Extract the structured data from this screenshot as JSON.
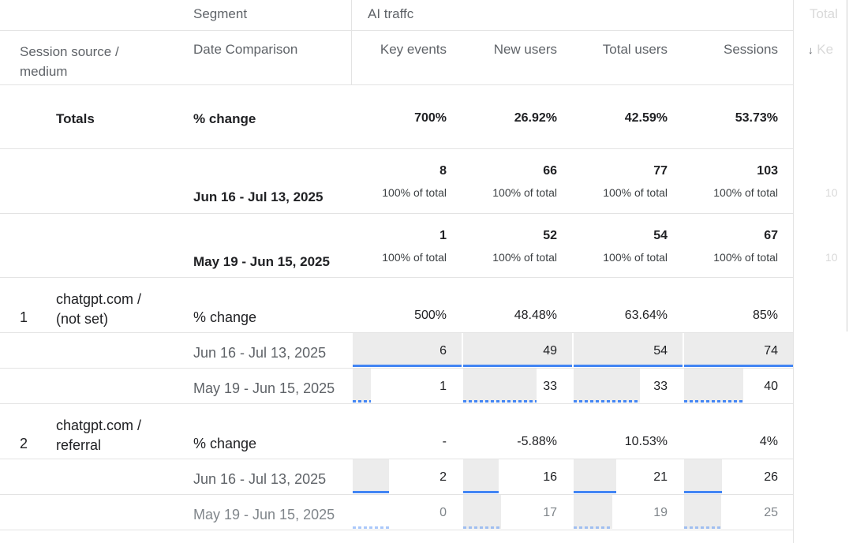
{
  "header": {
    "segment_label": "Segment",
    "segment_name": "AI traffc",
    "cut_segment": "Total"
  },
  "columns": {
    "source": "Session source / medium",
    "date": "Date Comparison",
    "key_events": "Key events",
    "new_users": "New users",
    "total_users": "Total users",
    "sessions": "Sessions",
    "cut_col": "Ke"
  },
  "totals": {
    "label": "Totals",
    "change_label": "% change",
    "change": [
      "700%",
      "26.92%",
      "42.59%",
      "53.73%"
    ],
    "current": {
      "date": "Jun 16 - Jul 13, 2025",
      "values": [
        "8",
        "66",
        "77",
        "103"
      ],
      "pct": "100% of total",
      "cut": "10"
    },
    "previous": {
      "date": "May 19 - Jun 15, 2025",
      "values": [
        "1",
        "52",
        "54",
        "67"
      ],
      "pct": "100% of total",
      "cut": "10"
    }
  },
  "rows": [
    {
      "index": "1",
      "source": "chatgpt.com / (not set)",
      "change_label": "% change",
      "change": [
        "500%",
        "48.48%",
        "63.64%",
        "85%"
      ],
      "current": {
        "date": "Jun 16 - Jul 13, 2025",
        "values": [
          "6",
          "49",
          "54",
          "74"
        ]
      },
      "previous": {
        "date": "May 19 - Jun 15, 2025",
        "values": [
          "1",
          "33",
          "33",
          "40"
        ]
      }
    },
    {
      "index": "2",
      "source": "chatgpt.com / referral",
      "change_label": "% change",
      "change": [
        "-",
        "-5.88%",
        "10.53%",
        "4%"
      ],
      "current": {
        "date": "Jun 16 - Jul 13, 2025",
        "values": [
          "2",
          "16",
          "21",
          "26"
        ]
      },
      "previous": {
        "date": "May 19 - Jun 15, 2025",
        "values": [
          "0",
          "17",
          "19",
          "25"
        ]
      }
    }
  ],
  "bar_fractions": {
    "row1_current": [
      1.0,
      1.0,
      1.0,
      1.0
    ],
    "row1_previous": [
      0.167,
      0.673,
      0.611,
      0.541
    ],
    "row2_current": [
      0.333,
      0.327,
      0.389,
      0.351
    ],
    "row2_previous": [
      0.0,
      0.347,
      0.352,
      0.338
    ]
  }
}
